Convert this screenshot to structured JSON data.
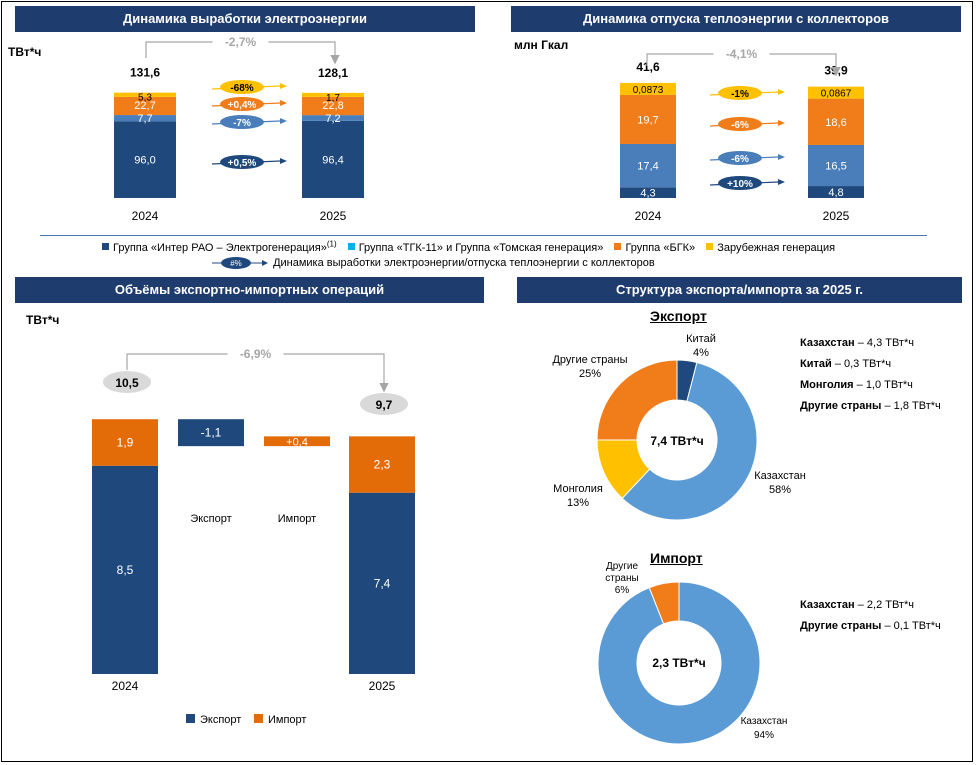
{
  "colors": {
    "navy": "#1f497d",
    "lightblue": "#5b9bd5",
    "midblue": "#4a7ebb",
    "orange": "#f07c1a",
    "yellow": "#ffc000",
    "darkorange": "#e36c09",
    "gray": "#a6a6a6"
  },
  "panel1": {
    "title": "Динамика выработки электроэнергии",
    "unit": "ТВт*ч",
    "change": "-2,7%",
    "chart_data": {
      "type": "bar",
      "stacked": true,
      "categories": [
        "2024",
        "2025"
      ],
      "totals": [
        "131,6",
        "128,1"
      ],
      "series": [
        {
          "name": "Группа «Интер РАО – Электрогенерация»",
          "values": [
            96.0,
            96.4
          ],
          "labels": [
            "96,0",
            "96,4"
          ]
        },
        {
          "name": "Группа «ТГК-11» и Группа «Томская генерация»",
          "values": [
            7.7,
            7.2
          ],
          "labels": [
            "7,7",
            "7,2"
          ]
        },
        {
          "name": "Группа «БГК»",
          "values": [
            22.7,
            22.8
          ],
          "labels": [
            "22,7",
            "22,8"
          ]
        },
        {
          "name": "Зарубежная генерация",
          "values": [
            5.3,
            1.7
          ],
          "labels": [
            "5,3",
            "1,7"
          ]
        }
      ],
      "dynamics": [
        "-68%",
        "+0,4%",
        "-7%",
        "+0,5%"
      ]
    }
  },
  "panel2": {
    "title": "Динамика отпуска теплоэнергии с коллекторов",
    "unit": "млн Гкал",
    "change": "-4,1%",
    "chart_data": {
      "type": "bar",
      "stacked": true,
      "categories": [
        "2024",
        "2025"
      ],
      "totals": [
        "41,6",
        "39,9"
      ],
      "series": [
        {
          "name": "Группа «Интер РАО – Электрогенерация»",
          "values": [
            4.3,
            4.8
          ],
          "labels": [
            "4,3",
            "4,8"
          ]
        },
        {
          "name": "Группа «ТГК-11» и Группа «Томская генерация»",
          "values": [
            17.4,
            16.5
          ],
          "labels": [
            "17,4",
            "16,5"
          ]
        },
        {
          "name": "Группа «БГК»",
          "values": [
            19.7,
            18.6
          ],
          "labels": [
            "19,7",
            "18,6"
          ]
        },
        {
          "name": "Зарубежная генерация",
          "values": [
            0.0873,
            0.0867
          ],
          "labels": [
            "0,0873",
            "0,0867"
          ]
        }
      ],
      "dynamics": [
        "-1%",
        "-6%",
        "-6%",
        "+10%"
      ]
    }
  },
  "legend": {
    "items": [
      {
        "label": "Группа «Интер РАО – Электрогенерация»",
        "sup": "(1)",
        "color": "#1f497d"
      },
      {
        "label": "Группа «ТГК-11» и Группа «Томская генерация»",
        "sup": "",
        "color": "#00b0f0"
      },
      {
        "label": "Группа «БГК»",
        "sup": "",
        "color": "#f07c1a"
      },
      {
        "label": "Зарубежная генерация",
        "sup": "",
        "color": "#ffc000"
      }
    ],
    "pill": "#%",
    "pill_label": "Динамика выработки электроэнергии/отпуска теплоэнергии с коллекторов"
  },
  "panel3": {
    "title": "Объёмы экспортно-импортных операций",
    "unit": "ТВт*ч",
    "change": "-6,9%",
    "chart_data": {
      "type": "bar",
      "subtype": "waterfall",
      "categories": [
        "2024",
        "Экспорт",
        "Импорт",
        "2025"
      ],
      "totals": [
        "10,5",
        "9,7"
      ],
      "bars": [
        {
          "category": "2024",
          "export": 8.5,
          "import": 1.9,
          "export_label": "8,5",
          "import_label": "1,9"
        },
        {
          "category": "Экспорт",
          "delta": -1.1,
          "label": "-1,1"
        },
        {
          "category": "Импорт",
          "delta": 0.4,
          "label": "+0,4"
        },
        {
          "category": "2025",
          "export": 7.4,
          "import": 2.3,
          "export_label": "7,4",
          "import_label": "2,3"
        }
      ],
      "legend": [
        "Экспорт",
        "Импорт"
      ]
    }
  },
  "panel4": {
    "title": "Структура экспорта/импорта за 2025 г.",
    "export": {
      "title": "Экспорт",
      "center": "7,4 ТВт*ч",
      "chart_data": {
        "type": "pie",
        "donut": true,
        "slices": [
          {
            "name": "Китай",
            "value": 4,
            "label": "4%"
          },
          {
            "name": "Казахстан",
            "value": 58,
            "label": "58%"
          },
          {
            "name": "Монголия",
            "value": 13,
            "label": "13%"
          },
          {
            "name": "Другие страны",
            "value": 25,
            "label": "25%"
          }
        ]
      },
      "bullets": [
        {
          "name": "Казахстан",
          "value": "– 4,3 ТВт*ч"
        },
        {
          "name": "Китай",
          "value": "– 0,3 ТВт*ч"
        },
        {
          "name": "Монголия",
          "value": "– 1,0 ТВт*ч"
        },
        {
          "name": "Другие страны",
          "value": "– 1,8 ТВт*ч"
        }
      ]
    },
    "import": {
      "title": "Импорт",
      "center": "2,3 ТВт*ч",
      "chart_data": {
        "type": "pie",
        "donut": true,
        "slices": [
          {
            "name": "Другие страны",
            "value": 6,
            "label": "6%"
          },
          {
            "name": "Казахстан",
            "value": 94,
            "label": "94%"
          }
        ]
      },
      "bullets": [
        {
          "name": "Казахстан",
          "value": "– 2,2 ТВт*ч"
        },
        {
          "name": "Другие страны",
          "value": "– 0,1 ТВт*ч"
        }
      ]
    }
  }
}
